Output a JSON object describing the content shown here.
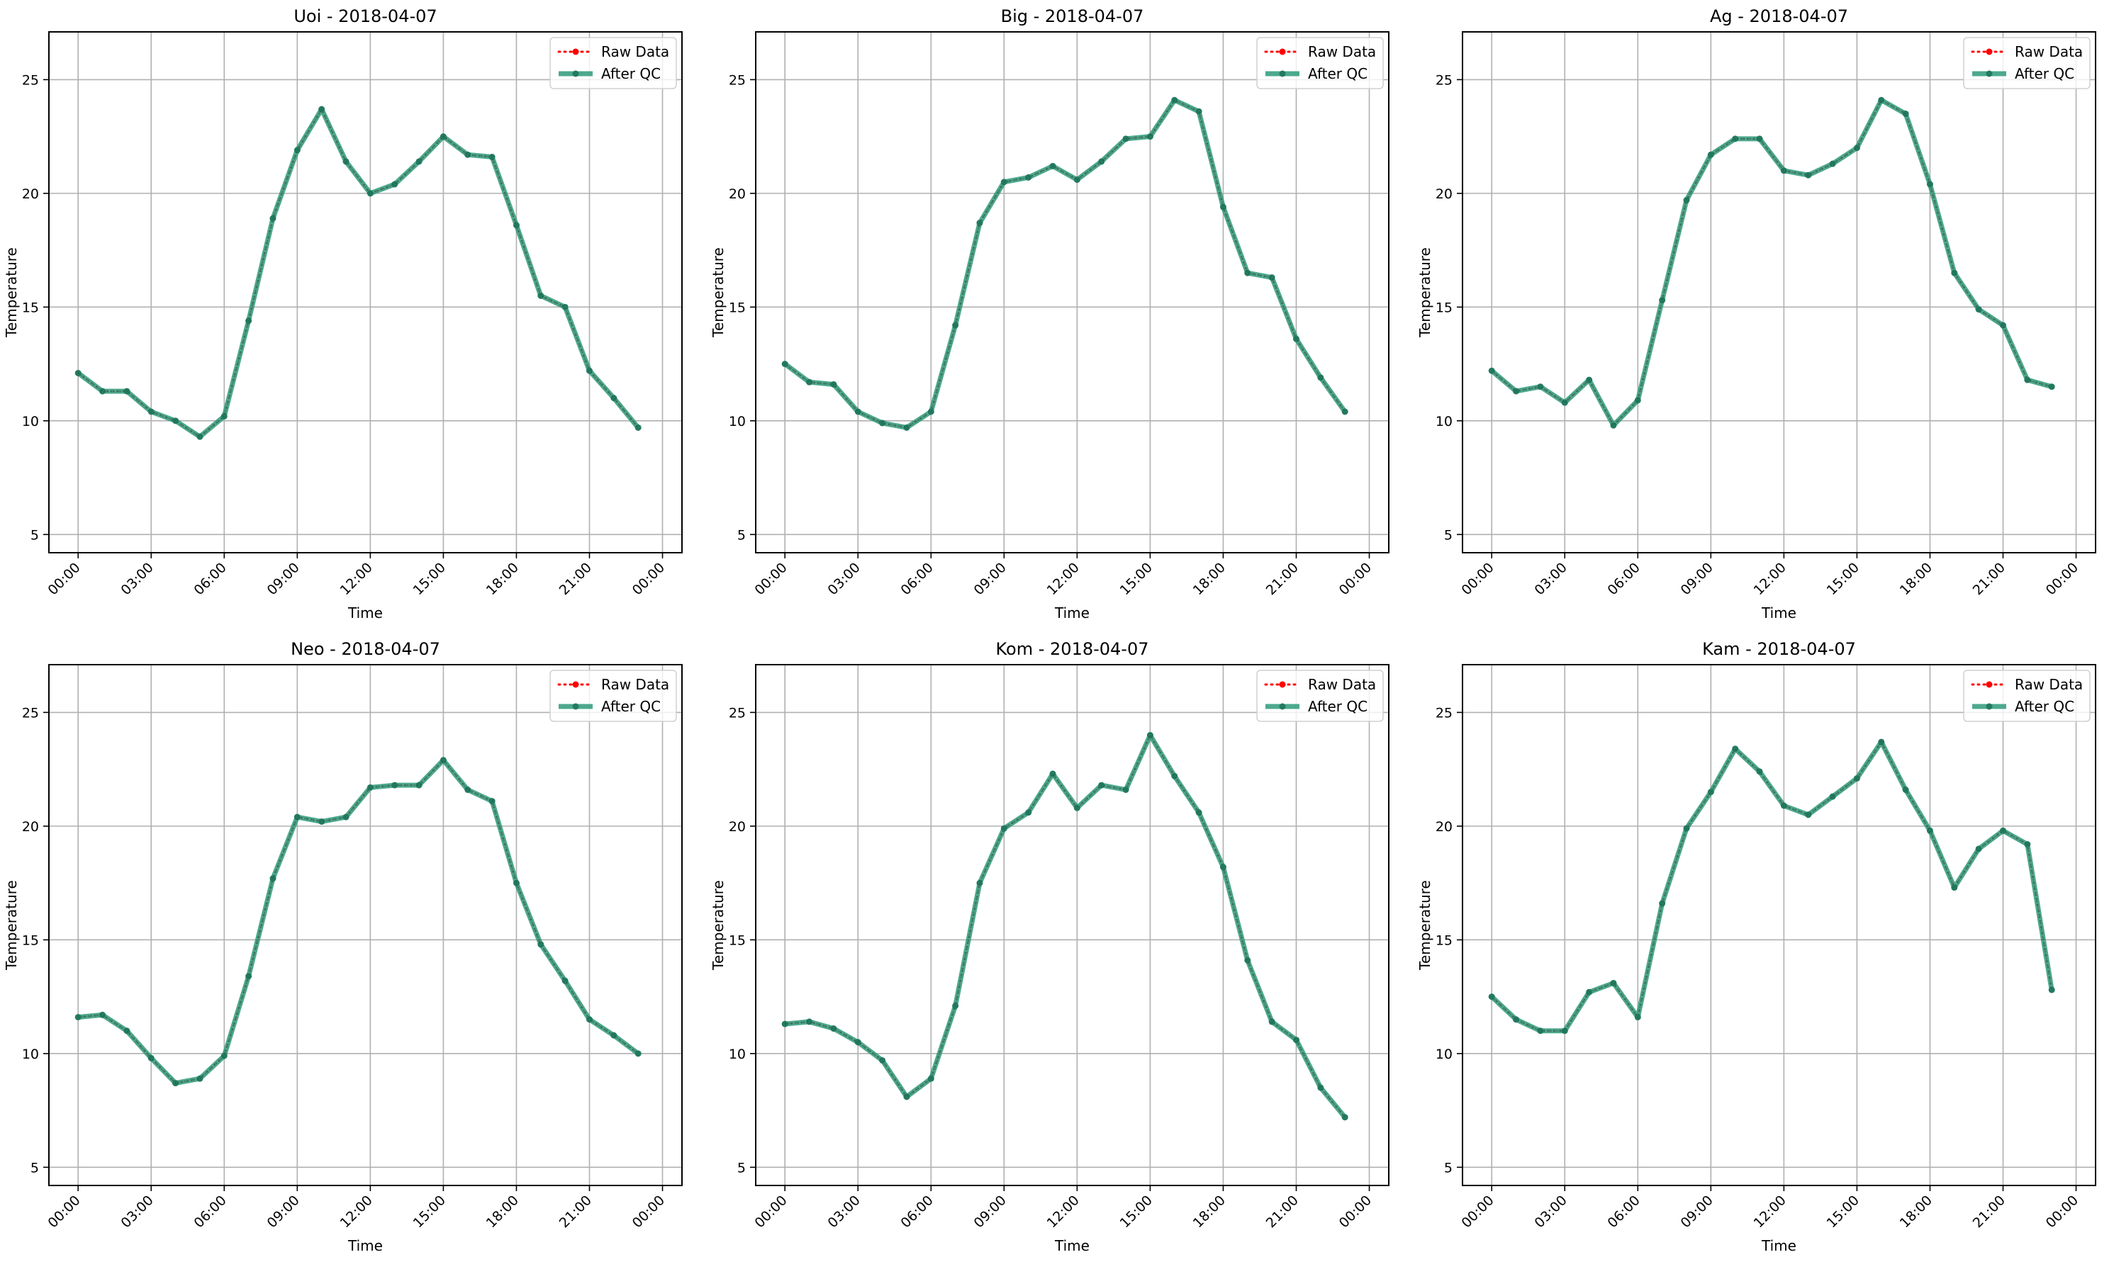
{
  "chart_data": [
    {
      "type": "line",
      "title": "Uoi - 2018-04-07",
      "xlabel": "Time",
      "ylabel": "Temperature",
      "x": [
        "00:00",
        "01:00",
        "02:00",
        "03:00",
        "04:00",
        "05:00",
        "06:00",
        "07:00",
        "08:00",
        "09:00",
        "10:00",
        "11:00",
        "12:00",
        "13:00",
        "14:00",
        "15:00",
        "16:00",
        "17:00",
        "18:00",
        "19:00",
        "20:00",
        "21:00",
        "22:00",
        "23:00"
      ],
      "xticks": [
        "00:00",
        "03:00",
        "06:00",
        "09:00",
        "12:00",
        "15:00",
        "18:00",
        "21:00",
        "00:00"
      ],
      "yticks": [
        5,
        10,
        15,
        20,
        25
      ],
      "ylim": [
        4.2,
        27.1
      ],
      "xlim_hours": [
        -1.2,
        24.8
      ],
      "grid": true,
      "legend_position": "top-right",
      "series": [
        {
          "name": "Raw Data",
          "color": "#ff0000",
          "style": "dotted",
          "values": [
            12.1,
            11.3,
            11.3,
            10.4,
            10.0,
            9.3,
            10.2,
            14.4,
            18.9,
            21.9,
            23.7,
            21.4,
            20.0,
            20.4,
            21.4,
            22.5,
            21.7,
            21.6,
            18.6,
            15.5,
            15.0,
            12.2,
            11.0,
            9.7
          ]
        },
        {
          "name": "After QC",
          "color": "#2e9a7a",
          "style": "solid",
          "values": [
            12.1,
            11.3,
            11.3,
            10.4,
            10.0,
            9.3,
            10.2,
            14.4,
            18.9,
            21.9,
            23.7,
            21.4,
            20.0,
            20.4,
            21.4,
            22.5,
            21.7,
            21.6,
            18.6,
            15.5,
            15.0,
            12.2,
            11.0,
            9.7
          ]
        }
      ]
    },
    {
      "type": "line",
      "title": "Big - 2018-04-07",
      "xlabel": "Time",
      "ylabel": "Temperature",
      "x": [
        "00:00",
        "01:00",
        "02:00",
        "03:00",
        "04:00",
        "05:00",
        "06:00",
        "07:00",
        "08:00",
        "09:00",
        "10:00",
        "11:00",
        "12:00",
        "13:00",
        "14:00",
        "15:00",
        "16:00",
        "17:00",
        "18:00",
        "19:00",
        "20:00",
        "21:00",
        "22:00",
        "23:00"
      ],
      "xticks": [
        "00:00",
        "03:00",
        "06:00",
        "09:00",
        "12:00",
        "15:00",
        "18:00",
        "21:00",
        "00:00"
      ],
      "yticks": [
        5,
        10,
        15,
        20,
        25
      ],
      "ylim": [
        4.2,
        27.1
      ],
      "xlim_hours": [
        -1.2,
        24.8
      ],
      "grid": true,
      "legend_position": "top-right",
      "series": [
        {
          "name": "Raw Data",
          "color": "#ff0000",
          "style": "dotted",
          "values": [
            12.5,
            11.7,
            11.6,
            10.4,
            9.9,
            9.7,
            10.4,
            14.2,
            18.7,
            20.5,
            20.7,
            21.2,
            20.6,
            21.4,
            22.4,
            22.5,
            24.1,
            23.6,
            19.4,
            16.5,
            16.3,
            13.6,
            11.9,
            10.4
          ]
        },
        {
          "name": "After QC",
          "color": "#2e9a7a",
          "style": "solid",
          "values": [
            12.5,
            11.7,
            11.6,
            10.4,
            9.9,
            9.7,
            10.4,
            14.2,
            18.7,
            20.5,
            20.7,
            21.2,
            20.6,
            21.4,
            22.4,
            22.5,
            24.1,
            23.6,
            19.4,
            16.5,
            16.3,
            13.6,
            11.9,
            10.4
          ]
        }
      ]
    },
    {
      "type": "line",
      "title": "Ag - 2018-04-07",
      "xlabel": "Time",
      "ylabel": "Temperature",
      "x": [
        "00:00",
        "01:00",
        "02:00",
        "03:00",
        "04:00",
        "05:00",
        "06:00",
        "07:00",
        "08:00",
        "09:00",
        "10:00",
        "11:00",
        "12:00",
        "13:00",
        "14:00",
        "15:00",
        "16:00",
        "17:00",
        "18:00",
        "19:00",
        "20:00",
        "21:00",
        "22:00",
        "23:00"
      ],
      "xticks": [
        "00:00",
        "03:00",
        "06:00",
        "09:00",
        "12:00",
        "15:00",
        "18:00",
        "21:00",
        "00:00"
      ],
      "yticks": [
        5,
        10,
        15,
        20,
        25
      ],
      "ylim": [
        4.2,
        27.1
      ],
      "xlim_hours": [
        -1.2,
        24.8
      ],
      "grid": true,
      "legend_position": "top-right",
      "series": [
        {
          "name": "Raw Data",
          "color": "#ff0000",
          "style": "dotted",
          "values": [
            12.2,
            11.3,
            11.5,
            10.8,
            11.8,
            9.8,
            10.9,
            15.3,
            19.7,
            21.7,
            22.4,
            22.4,
            21.0,
            20.8,
            21.3,
            22.0,
            24.1,
            23.5,
            20.4,
            16.5,
            14.9,
            14.2,
            11.8,
            11.5
          ]
        },
        {
          "name": "After QC",
          "color": "#2e9a7a",
          "style": "solid",
          "values": [
            12.2,
            11.3,
            11.5,
            10.8,
            11.8,
            9.8,
            10.9,
            15.3,
            19.7,
            21.7,
            22.4,
            22.4,
            21.0,
            20.8,
            21.3,
            22.0,
            24.1,
            23.5,
            20.4,
            16.5,
            14.9,
            14.2,
            11.8,
            11.5
          ]
        }
      ]
    },
    {
      "type": "line",
      "title": "Neo - 2018-04-07",
      "xlabel": "Time",
      "ylabel": "Temperature",
      "x": [
        "00:00",
        "01:00",
        "02:00",
        "03:00",
        "04:00",
        "05:00",
        "06:00",
        "07:00",
        "08:00",
        "09:00",
        "10:00",
        "11:00",
        "12:00",
        "13:00",
        "14:00",
        "15:00",
        "16:00",
        "17:00",
        "18:00",
        "19:00",
        "20:00",
        "21:00",
        "22:00",
        "23:00"
      ],
      "xticks": [
        "00:00",
        "03:00",
        "06:00",
        "09:00",
        "12:00",
        "15:00",
        "18:00",
        "21:00",
        "00:00"
      ],
      "yticks": [
        5,
        10,
        15,
        20,
        25
      ],
      "ylim": [
        4.2,
        27.1
      ],
      "xlim_hours": [
        -1.2,
        24.8
      ],
      "grid": true,
      "legend_position": "top-right",
      "series": [
        {
          "name": "Raw Data",
          "color": "#ff0000",
          "style": "dotted",
          "values": [
            11.6,
            11.7,
            11.0,
            9.8,
            8.7,
            8.9,
            9.9,
            13.4,
            17.7,
            20.4,
            20.2,
            20.4,
            21.7,
            21.8,
            21.8,
            22.9,
            21.6,
            21.1,
            17.5,
            14.8,
            13.2,
            11.5,
            10.8,
            10.0
          ]
        },
        {
          "name": "After QC",
          "color": "#2e9a7a",
          "style": "solid",
          "values": [
            11.6,
            11.7,
            11.0,
            9.8,
            8.7,
            8.9,
            9.9,
            13.4,
            17.7,
            20.4,
            20.2,
            20.4,
            21.7,
            21.8,
            21.8,
            22.9,
            21.6,
            21.1,
            17.5,
            14.8,
            13.2,
            11.5,
            10.8,
            10.0
          ]
        }
      ]
    },
    {
      "type": "line",
      "title": "Kom - 2018-04-07",
      "xlabel": "Time",
      "ylabel": "Temperature",
      "x": [
        "00:00",
        "01:00",
        "02:00",
        "03:00",
        "04:00",
        "05:00",
        "06:00",
        "07:00",
        "08:00",
        "09:00",
        "10:00",
        "11:00",
        "12:00",
        "13:00",
        "14:00",
        "15:00",
        "16:00",
        "17:00",
        "18:00",
        "19:00",
        "20:00",
        "21:00",
        "22:00",
        "23:00"
      ],
      "xticks": [
        "00:00",
        "03:00",
        "06:00",
        "09:00",
        "12:00",
        "15:00",
        "18:00",
        "21:00",
        "00:00"
      ],
      "yticks": [
        5,
        10,
        15,
        20,
        25
      ],
      "ylim": [
        4.2,
        27.1
      ],
      "xlim_hours": [
        -1.2,
        24.8
      ],
      "grid": true,
      "legend_position": "top-right",
      "series": [
        {
          "name": "Raw Data",
          "color": "#ff0000",
          "style": "dotted",
          "values": [
            11.3,
            11.4,
            11.1,
            10.5,
            9.7,
            8.1,
            8.9,
            12.1,
            17.5,
            19.9,
            20.6,
            22.3,
            20.8,
            21.8,
            21.6,
            24.0,
            22.2,
            20.6,
            18.2,
            14.1,
            11.4,
            10.6,
            8.5,
            7.2
          ]
        },
        {
          "name": "After QC",
          "color": "#2e9a7a",
          "style": "solid",
          "values": [
            11.3,
            11.4,
            11.1,
            10.5,
            9.7,
            8.1,
            8.9,
            12.1,
            17.5,
            19.9,
            20.6,
            22.3,
            20.8,
            21.8,
            21.6,
            24.0,
            22.2,
            20.6,
            18.2,
            14.1,
            11.4,
            10.6,
            8.5,
            7.2
          ]
        }
      ]
    },
    {
      "type": "line",
      "title": "Kam - 2018-04-07",
      "xlabel": "Time",
      "ylabel": "Temperature",
      "x": [
        "00:00",
        "01:00",
        "02:00",
        "03:00",
        "04:00",
        "05:00",
        "06:00",
        "07:00",
        "08:00",
        "09:00",
        "10:00",
        "11:00",
        "12:00",
        "13:00",
        "14:00",
        "15:00",
        "16:00",
        "17:00",
        "18:00",
        "19:00",
        "20:00",
        "21:00",
        "22:00",
        "23:00"
      ],
      "xticks": [
        "00:00",
        "03:00",
        "06:00",
        "09:00",
        "12:00",
        "15:00",
        "18:00",
        "21:00",
        "00:00"
      ],
      "yticks": [
        5,
        10,
        15,
        20,
        25
      ],
      "ylim": [
        4.2,
        27.1
      ],
      "xlim_hours": [
        -1.2,
        24.8
      ],
      "grid": true,
      "legend_position": "top-right",
      "series": [
        {
          "name": "Raw Data",
          "color": "#ff0000",
          "style": "dotted",
          "values": [
            12.5,
            11.5,
            11.0,
            11.0,
            12.7,
            13.1,
            11.6,
            16.6,
            19.9,
            21.5,
            23.4,
            22.4,
            20.9,
            20.5,
            21.3,
            22.1,
            23.7,
            21.6,
            19.8,
            17.3,
            19.0,
            19.8,
            19.2,
            12.8
          ]
        },
        {
          "name": "After QC",
          "color": "#2e9a7a",
          "style": "solid",
          "values": [
            12.5,
            11.5,
            11.0,
            11.0,
            12.7,
            13.1,
            11.6,
            16.6,
            19.9,
            21.5,
            23.4,
            22.4,
            20.9,
            20.5,
            21.3,
            22.1,
            23.7,
            21.6,
            19.8,
            17.3,
            19.0,
            19.8,
            19.2,
            12.8
          ]
        }
      ]
    }
  ]
}
